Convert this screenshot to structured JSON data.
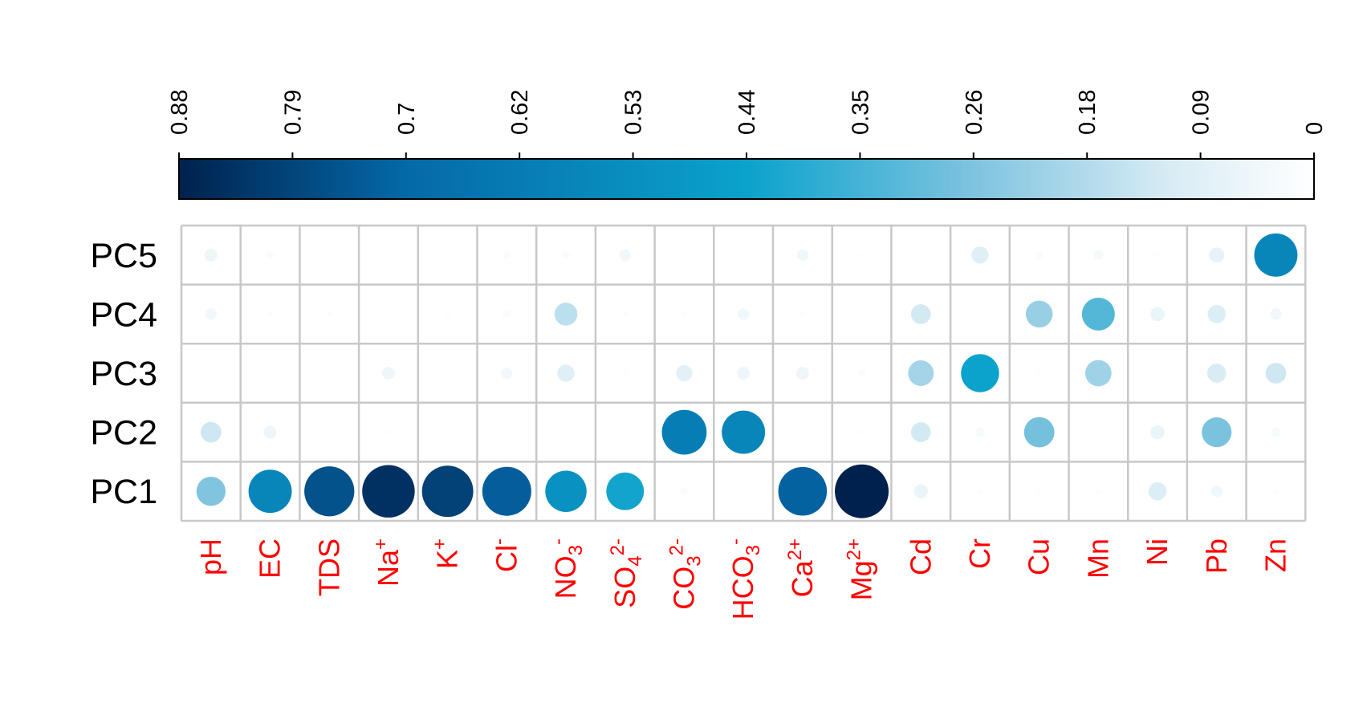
{
  "chart_data": {
    "type": "heatmap",
    "style": "correlation-circle-plot",
    "rows": [
      "PC5",
      "PC4",
      "PC3",
      "PC2",
      "PC1"
    ],
    "columns": [
      {
        "base": "pH",
        "sub": "",
        "sup": ""
      },
      {
        "base": "EC",
        "sub": "",
        "sup": ""
      },
      {
        "base": "TDS",
        "sub": "",
        "sup": ""
      },
      {
        "base": "Na",
        "sub": "",
        "sup": "+"
      },
      {
        "base": "K",
        "sub": "",
        "sup": "+"
      },
      {
        "base": "Cl",
        "sub": "",
        "sup": "-"
      },
      {
        "base": "NO",
        "sub": "3",
        "sup": "-"
      },
      {
        "base": "SO",
        "sub": "4",
        "sup": "2-"
      },
      {
        "base": "CO",
        "sub": "3",
        "sup": "2-"
      },
      {
        "base": "HCO",
        "sub": "3",
        "sup": "-"
      },
      {
        "base": "Ca",
        "sub": "",
        "sup": "2+"
      },
      {
        "base": "Mg",
        "sub": "",
        "sup": "2+"
      },
      {
        "base": "Cd",
        "sub": "",
        "sup": ""
      },
      {
        "base": "Cr",
        "sub": "",
        "sup": ""
      },
      {
        "base": "Cu",
        "sub": "",
        "sup": ""
      },
      {
        "base": "Mn",
        "sub": "",
        "sup": ""
      },
      {
        "base": "Ni",
        "sub": "",
        "sup": ""
      },
      {
        "base": "Pb",
        "sub": "",
        "sup": ""
      },
      {
        "base": "Zn",
        "sub": "",
        "sup": ""
      }
    ],
    "values": [
      [
        0.05,
        0.02,
        0.0,
        0.0,
        0.01,
        0.02,
        0.02,
        0.04,
        0.0,
        0.01,
        0.04,
        0.01,
        0.01,
        0.09,
        0.02,
        0.03,
        0.01,
        0.07,
        0.57
      ],
      [
        0.04,
        0.01,
        0.01,
        0.0,
        0.01,
        0.02,
        0.16,
        0.01,
        0.01,
        0.04,
        0.01,
        0.0,
        0.12,
        0.0,
        0.22,
        0.33,
        0.06,
        0.1,
        0.04
      ],
      [
        0.0,
        0.0,
        0.0,
        0.05,
        0.0,
        0.04,
        0.09,
        0.01,
        0.08,
        0.05,
        0.05,
        0.02,
        0.2,
        0.44,
        0.01,
        0.21,
        0.0,
        0.11,
        0.13
      ],
      [
        0.13,
        0.05,
        0.0,
        0.01,
        0.0,
        0.0,
        0.0,
        0.0,
        0.61,
        0.57,
        0.0,
        0.01,
        0.12,
        0.03,
        0.28,
        0.0,
        0.06,
        0.27,
        0.03
      ],
      [
        0.26,
        0.57,
        0.76,
        0.84,
        0.8,
        0.73,
        0.52,
        0.43,
        0.02,
        0.0,
        0.72,
        0.88,
        0.06,
        0.01,
        0.01,
        0.01,
        0.1,
        0.04,
        0.01
      ]
    ],
    "color_scale": {
      "ticks": [
        "0.88",
        "0.79",
        "0.7",
        "0.62",
        "0.53",
        "0.44",
        "0.35",
        "0.26",
        "0.18",
        "0.09",
        "0"
      ],
      "min": 0,
      "max": 0.88,
      "colors": [
        "#ffffff",
        "#d7ebf4",
        "#7fc3df",
        "#0ba2cc",
        "#0569a8",
        "#00214d"
      ]
    },
    "column_label_color": "#ff0000",
    "grid": true
  }
}
